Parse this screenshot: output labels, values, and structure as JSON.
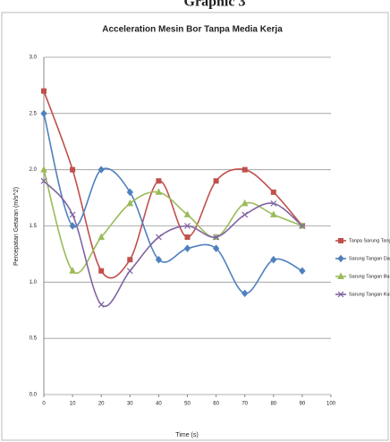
{
  "chart_data": {
    "type": "line",
    "heading": "Graphic 3",
    "title": "Acceleration Mesin Bor Tanpa Media Kerja",
    "ylabel": "Percepatan Getaran (m/s^2)",
    "xlabel": "Time (s)",
    "x": [
      0,
      10,
      20,
      30,
      40,
      50,
      60,
      70,
      80,
      90
    ],
    "xlim": [
      0,
      100
    ],
    "xticks": [
      0,
      10,
      20,
      30,
      40,
      50,
      60,
      70,
      80,
      90,
      100
    ],
    "ylim": [
      0,
      3
    ],
    "yticks": [
      {
        "value": 0,
        "label": "0.0"
      },
      {
        "value": 0.5,
        "label": "0.5"
      },
      {
        "value": 1,
        "label": "1.0"
      },
      {
        "value": 1.5,
        "label": "1.5"
      },
      {
        "value": 2,
        "label": "2.0"
      },
      {
        "value": 2.5,
        "label": "2.5"
      },
      {
        "value": 3,
        "label": "3.0"
      }
    ],
    "grid": true,
    "legend": "right",
    "series": [
      {
        "name": "Tanpa Sarung Tanga",
        "color": "#c0504d",
        "marker": "square",
        "values": [
          2.7,
          2.0,
          1.1,
          1.2,
          1.9,
          1.4,
          1.9,
          2.0,
          1.8,
          1.5
        ]
      },
      {
        "name": "Sarung Tangan Dacr",
        "color": "#4f81bd",
        "marker": "diamond",
        "values": [
          2.5,
          1.5,
          2.0,
          1.8,
          1.2,
          1.3,
          1.3,
          0.9,
          1.2,
          1.1
        ]
      },
      {
        "name": "Sarung Tangan Busa",
        "color": "#9bbb59",
        "marker": "triangle",
        "values": [
          2.0,
          1.1,
          1.4,
          1.7,
          1.8,
          1.6,
          1.4,
          1.7,
          1.6,
          1.5
        ]
      },
      {
        "name": "Sarung Tangan Kulit",
        "color": "#8064a2",
        "marker": "cross",
        "values": [
          1.9,
          1.6,
          0.8,
          1.1,
          1.4,
          1.5,
          1.4,
          1.6,
          1.7,
          1.5
        ]
      }
    ]
  }
}
